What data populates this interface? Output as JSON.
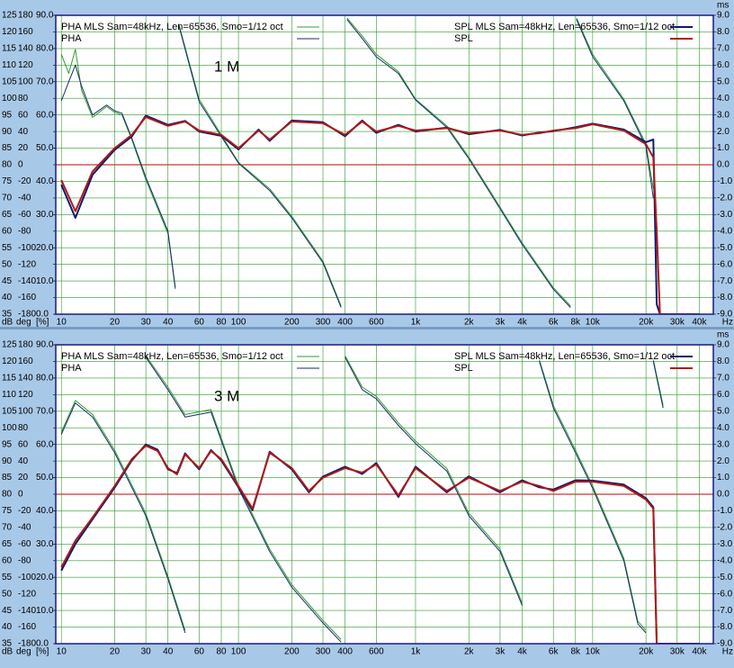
{
  "chart_data": [
    {
      "type": "line",
      "annotation": "1 M",
      "ylabel": "dB",
      "deg_label": "deg",
      "pct_label": "[%]",
      "y2label": "ms",
      "xlabel": "Hz",
      "log_x": true,
      "grid": true,
      "grid_color": "#2a9a2a",
      "zero_line_color": "#c00000",
      "xlim": [
        9.3,
        48000
      ],
      "xticks": [
        10,
        20,
        30,
        40,
        60,
        80,
        100,
        200,
        300,
        400,
        600,
        {
          "value": 1000,
          "label": "1k"
        },
        {
          "value": 2000,
          "label": "2k"
        },
        {
          "value": 3000,
          "label": "3k"
        },
        {
          "value": 4000,
          "label": "4k"
        },
        {
          "value": 6000,
          "label": "6k"
        },
        {
          "value": 8000,
          "label": "8k"
        },
        {
          "value": 10000,
          "label": "10k"
        },
        {
          "value": 20000,
          "label": "20k"
        },
        {
          "value": 30000,
          "label": "30k"
        },
        {
          "value": 40000,
          "label": "40k"
        }
      ],
      "ylim": [
        35,
        125
      ],
      "yticks": [
        125,
        120,
        115,
        110,
        105,
        100,
        95,
        90,
        85,
        80,
        75,
        70,
        65,
        60,
        55,
        50,
        45,
        40,
        35
      ],
      "deglim": [
        -180,
        180
      ],
      "degticks": [
        180,
        160,
        140,
        120,
        100,
        80,
        60,
        40,
        20,
        0,
        -20,
        -40,
        -60,
        -80,
        -100,
        -120,
        -140,
        -160,
        -180
      ],
      "pctlim": [
        0,
        90
      ],
      "pctticks": [
        {
          "value": 90,
          "label": "90.0"
        },
        {
          "value": 80,
          "label": "80.0"
        },
        {
          "value": 70,
          "label": "70.0"
        },
        {
          "value": 60,
          "label": "60.0"
        },
        {
          "value": 50,
          "label": "50.0"
        },
        {
          "value": 40,
          "label": "40.0"
        },
        {
          "value": 30,
          "label": "30.0"
        },
        {
          "value": 20,
          "label": "20.0"
        },
        {
          "value": 10,
          "label": "10.0"
        },
        {
          "value": 0,
          "label": "0.0"
        }
      ],
      "y2lim": [
        -9,
        9
      ],
      "y2ticks": [
        {
          "value": 9,
          "label": "9.0"
        },
        {
          "value": 8,
          "label": "8.0"
        },
        {
          "value": 7,
          "label": "7.0"
        },
        {
          "value": 6,
          "label": "6.0"
        },
        {
          "value": 5,
          "label": "5.0"
        },
        {
          "value": 4,
          "label": "4.0"
        },
        {
          "value": 3,
          "label": "3.0"
        },
        {
          "value": 2,
          "label": "2.0"
        },
        {
          "value": 1,
          "label": "1.0"
        },
        {
          "value": 0,
          "label": "0.0"
        },
        {
          "value": -1,
          "label": "-1.0"
        },
        {
          "value": -2,
          "label": "-2.0"
        },
        {
          "value": -3,
          "label": "-3.0"
        },
        {
          "value": -4,
          "label": "-4.0"
        },
        {
          "value": -5,
          "label": "-5.0"
        },
        {
          "value": -6,
          "label": "-6.0"
        },
        {
          "value": -7,
          "label": "-7.0"
        },
        {
          "value": -8,
          "label": "-8.0"
        },
        {
          "value": -9,
          "label": "-9.0"
        }
      ],
      "series": [
        {
          "name": "PHA  MLS Sam=48kHz, Len=65536, Smo=1/12 oct",
          "color": "#2f9e2f",
          "axis": "deg",
          "x": [
            10,
            11,
            12,
            13,
            15,
            18,
            20,
            22,
            25,
            30,
            40,
            44,
            45,
            46,
            60,
            80,
            100,
            150,
            200,
            300,
            380,
            400,
            410,
            500,
            600,
            800,
            1000,
            1500,
            2000,
            3000,
            4000,
            6000,
            7500,
            8000,
            8100,
            10000,
            15000,
            20000,
            22000
          ],
          "values": [
            133,
            110,
            139,
            90,
            57,
            70,
            63,
            60,
            30,
            -18,
            -83,
            -150,
            null,
            170,
            79,
            36,
            3,
            -29,
            -62,
            -116,
            -170,
            null,
            177,
            155,
            133,
            112,
            79,
            47,
            9,
            -51,
            -94,
            -148,
            -170,
            null,
            177,
            133,
            79,
            25,
            -29
          ]
        },
        {
          "name": "PHA",
          "color": "#1a2a6e",
          "axis": "deg",
          "x": [
            10,
            11,
            12,
            13,
            15,
            18,
            20,
            22,
            25,
            30,
            40,
            44,
            45,
            46,
            60,
            80,
            100,
            150,
            200,
            300,
            380,
            400,
            410,
            500,
            600,
            800,
            1000,
            1500,
            2000,
            3000,
            4000,
            6000,
            7500,
            8000,
            8100,
            10000,
            15000,
            20000,
            22000
          ],
          "values": [
            77,
            100,
            120,
            95,
            60,
            72,
            65,
            62,
            32,
            -15,
            -80,
            -148,
            null,
            168,
            76,
            34,
            2,
            -31,
            -64,
            -118,
            -172,
            null,
            175,
            152,
            130,
            110,
            78,
            45,
            7,
            -53,
            -96,
            -150,
            -172,
            null,
            175,
            130,
            77,
            22,
            -40
          ]
        },
        {
          "name": "SPL  MLS Sam=48kHz, Len=65536, Smo=1/12 oct",
          "color": "#0d1a6e",
          "x": [
            10,
            12,
            15,
            20,
            25,
            30,
            40,
            50,
            60,
            80,
            100,
            130,
            150,
            200,
            300,
            400,
            500,
            600,
            800,
            1000,
            1500,
            2000,
            3000,
            4000,
            5000,
            6000,
            8000,
            10000,
            15000,
            20000,
            22000,
            23000,
            24000,
            40000
          ],
          "values": [
            74,
            64,
            77,
            84.5,
            88.5,
            94.8,
            92,
            93.2,
            90,
            88.7,
            84.6,
            90.6,
            87.2,
            93.3,
            92.8,
            88.6,
            93.3,
            89.6,
            92,
            90,
            91.2,
            89.2,
            90.5,
            88.8,
            89.7,
            90.1,
            91.3,
            92.4,
            90.6,
            86.8,
            87.6,
            38,
            35,
            35
          ]
        },
        {
          "name": "SPL",
          "color": "#b01818",
          "x": [
            10,
            12,
            15,
            20,
            25,
            30,
            40,
            50,
            60,
            80,
            100,
            130,
            150,
            200,
            300,
            400,
            500,
            600,
            800,
            1000,
            1500,
            2000,
            3000,
            4000,
            5000,
            6000,
            8000,
            10000,
            15000,
            20000,
            22000,
            23000,
            24000,
            40000
          ],
          "values": [
            75.4,
            66,
            78,
            85,
            89,
            94.4,
            91.7,
            93,
            90.3,
            89,
            85,
            90.3,
            87.6,
            93,
            92.5,
            89,
            93,
            90,
            91.7,
            90.3,
            91,
            89.5,
            90.3,
            89,
            89.5,
            90.3,
            91,
            92.2,
            90.3,
            86.2,
            82.2,
            60,
            35,
            35
          ]
        }
      ]
    },
    {
      "type": "line",
      "annotation": "3 M",
      "ylabel": "dB",
      "deg_label": "deg",
      "pct_label": "[%]",
      "y2label": "ms",
      "xlabel": "Hz",
      "log_x": true,
      "grid": true,
      "grid_color": "#2a9a2a",
      "zero_line_color": "#c00000",
      "xlim": [
        9.3,
        48000
      ],
      "xticks": [
        10,
        20,
        30,
        40,
        60,
        80,
        100,
        200,
        300,
        400,
        600,
        {
          "value": 1000,
          "label": "1k"
        },
        {
          "value": 2000,
          "label": "2k"
        },
        {
          "value": 3000,
          "label": "3k"
        },
        {
          "value": 4000,
          "label": "4k"
        },
        {
          "value": 6000,
          "label": "6k"
        },
        {
          "value": 8000,
          "label": "8k"
        },
        {
          "value": 10000,
          "label": "10k"
        },
        {
          "value": 20000,
          "label": "20k"
        },
        {
          "value": 30000,
          "label": "30k"
        },
        {
          "value": 40000,
          "label": "40k"
        }
      ],
      "ylim": [
        35,
        125
      ],
      "yticks": [
        125,
        120,
        115,
        110,
        105,
        100,
        95,
        90,
        85,
        80,
        75,
        70,
        65,
        60,
        55,
        50,
        45,
        40,
        35
      ],
      "deglim": [
        -180,
        180
      ],
      "degticks": [
        180,
        160,
        140,
        120,
        100,
        80,
        60,
        40,
        20,
        0,
        -20,
        -40,
        -60,
        -80,
        -100,
        -120,
        -140,
        -160,
        -180
      ],
      "pctlim": [
        0,
        90
      ],
      "pctticks": [
        {
          "value": 90,
          "label": "90.0"
        },
        {
          "value": 80,
          "label": "80.0"
        },
        {
          "value": 70,
          "label": "70.0"
        },
        {
          "value": 60,
          "label": "60.0"
        },
        {
          "value": 50,
          "label": "50.0"
        },
        {
          "value": 40,
          "label": "40.0"
        },
        {
          "value": 30,
          "label": "30.0"
        },
        {
          "value": 20,
          "label": "20.0"
        },
        {
          "value": 10,
          "label": "10.0"
        },
        {
          "value": 0,
          "label": "0.0"
        }
      ],
      "y2lim": [
        -9,
        9
      ],
      "y2ticks": [
        {
          "value": 9,
          "label": "9.0"
        },
        {
          "value": 8,
          "label": "8.0"
        },
        {
          "value": 7,
          "label": "7.0"
        },
        {
          "value": 6,
          "label": "6.0"
        },
        {
          "value": 5,
          "label": "5.0"
        },
        {
          "value": 4,
          "label": "4.0"
        },
        {
          "value": 3,
          "label": "3.0"
        },
        {
          "value": 2,
          "label": "2.0"
        },
        {
          "value": 1,
          "label": "1.0"
        },
        {
          "value": 0,
          "label": "0.0"
        },
        {
          "value": -1,
          "label": "-1.0"
        },
        {
          "value": -2,
          "label": "-2.0"
        },
        {
          "value": -3,
          "label": "-3.0"
        },
        {
          "value": -4,
          "label": "-4.0"
        },
        {
          "value": -5,
          "label": "-5.0"
        },
        {
          "value": -6,
          "label": "-6.0"
        },
        {
          "value": -7,
          "label": "-7.0"
        },
        {
          "value": -8,
          "label": "-8.0"
        },
        {
          "value": -9,
          "label": "-9.0"
        }
      ],
      "series": [
        {
          "name": "PHA  MLS Sam=48kHz, Len=65536, Smo=1/12 oct",
          "color": "#2f9e2f",
          "axis": "deg",
          "x": [
            10,
            12,
            15,
            20,
            30,
            40,
            50,
            50,
            30,
            40,
            50,
            70,
            100,
            150,
            200,
            300,
            380,
            390,
            400,
            500,
            600,
            800,
            1000,
            1500,
            2000,
            3000,
            4000,
            4500,
            5000,
            6000,
            8000,
            10000,
            15000,
            18000,
            20000,
            21000,
            22000,
            25000
          ],
          "values": [
            75,
            113,
            96,
            53,
            -23,
            -99,
            -164,
            null,
            167,
            129,
            96,
            102,
            10,
            -66,
            -109,
            -152,
            -175,
            null,
            167,
            129,
            118,
            86,
            64,
            31,
            -23,
            -66,
            -131,
            null,
            162,
            107,
            53,
            10,
            -77,
            -153,
            -164,
            null,
            162,
            107
          ]
        },
        {
          "name": "PHA",
          "color": "#1a2a6e",
          "axis": "deg",
          "x": [
            10,
            12,
            15,
            20,
            30,
            40,
            50,
            50,
            30,
            40,
            50,
            70,
            100,
            150,
            200,
            300,
            380,
            390,
            400,
            500,
            600,
            800,
            1000,
            1500,
            2000,
            3000,
            4000,
            4500,
            5000,
            6000,
            8000,
            10000,
            15000,
            18000,
            20000,
            21000,
            22000,
            25000
          ],
          "values": [
            72,
            110,
            93,
            50,
            -26,
            -102,
            -167,
            null,
            165,
            126,
            93,
            99,
            7,
            -69,
            -112,
            -155,
            -178,
            null,
            165,
            126,
            115,
            83,
            61,
            28,
            -26,
            -69,
            -134,
            null,
            160,
            104,
            50,
            7,
            -80,
            -156,
            -167,
            null,
            160,
            104
          ]
        },
        {
          "name": "SPL  MLS Sam=48kHz, Len=65536, Smo=1/12 oct",
          "color": "#0d1a6e",
          "x": [
            10,
            12,
            15,
            20,
            25,
            30,
            35,
            40,
            45,
            50,
            60,
            70,
            80,
            100,
            120,
            150,
            200,
            250,
            300,
            400,
            500,
            600,
            800,
            1000,
            1500,
            2000,
            3000,
            4000,
            5000,
            6000,
            8000,
            10000,
            15000,
            20000,
            22000,
            23000,
            40000
          ],
          "values": [
            57,
            65,
            72.5,
            82,
            90.2,
            95,
            93.4,
            87.5,
            86.4,
            92.3,
            87.5,
            93.3,
            90.2,
            82.1,
            75.2,
            92.8,
            87.5,
            80.6,
            85.3,
            88.3,
            86.1,
            89.4,
            79.2,
            88.3,
            80.6,
            85.4,
            80.6,
            84.2,
            82.1,
            81.4,
            84.2,
            84.1,
            82.9,
            78.8,
            76.1,
            35,
            35
          ]
        },
        {
          "name": "SPL",
          "color": "#b01818",
          "x": [
            10,
            12,
            15,
            20,
            25,
            30,
            35,
            40,
            45,
            50,
            60,
            70,
            80,
            100,
            120,
            150,
            200,
            250,
            300,
            400,
            500,
            600,
            800,
            1000,
            1500,
            2000,
            3000,
            4000,
            5000,
            6000,
            8000,
            10000,
            15000,
            20000,
            22000,
            23000,
            40000
          ],
          "values": [
            58,
            66,
            73,
            82.5,
            90.6,
            94.6,
            93,
            87.9,
            86,
            92,
            87.9,
            93,
            90.6,
            82.5,
            75.7,
            92.5,
            87.9,
            81,
            85,
            87.9,
            86.5,
            89,
            79.7,
            87.9,
            81,
            85,
            81,
            83.8,
            82.5,
            81,
            83.8,
            83.8,
            82.5,
            78.4,
            75.7,
            35,
            35
          ]
        }
      ]
    }
  ]
}
